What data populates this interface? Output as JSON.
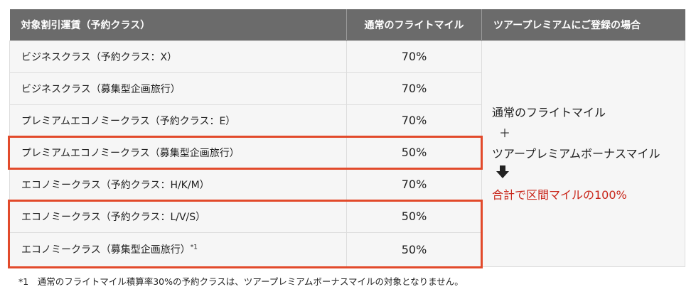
{
  "table": {
    "headers": {
      "fare": "対象割引運賃（予約クラス）",
      "mile": "通常のフライトマイル",
      "tour": "ツアープレミアムにご登録の場合"
    },
    "rows": [
      {
        "fare": "ビジネスクラス（予約クラス：X）",
        "mile": "70%"
      },
      {
        "fare": "ビジネスクラス（募集型企画旅行）",
        "mile": "70%"
      },
      {
        "fare": "プレミアムエコノミークラス（予約クラス：E）",
        "mile": "70%"
      },
      {
        "fare": "プレミアムエコノミークラス（募集型企画旅行）",
        "mile": "50%"
      },
      {
        "fare": "エコノミークラス（予約クラス：H/K/M）",
        "mile": "70%"
      },
      {
        "fare": "エコノミークラス（予約クラス：L/V/S）",
        "mile": "50%"
      },
      {
        "fare": "エコノミークラス（募集型企画旅行）",
        "mile": "50%",
        "note": "*1"
      }
    ],
    "tour_premium": {
      "line1": "通常のフライトマイル",
      "plus": "＋",
      "line2": "ツアープレミアムボーナスマイル",
      "arrow_icon": "down-arrow-icon",
      "result": "合計で区間マイルの100%"
    }
  },
  "colors": {
    "header_bg": "#6b6b6b",
    "highlight": "#e24a2b",
    "result_text": "#c9271b"
  },
  "footnote": "*1　通常のフライトマイル積算率30%の予約クラスは、ツアープレミアムボーナスマイルの対象となりません。"
}
